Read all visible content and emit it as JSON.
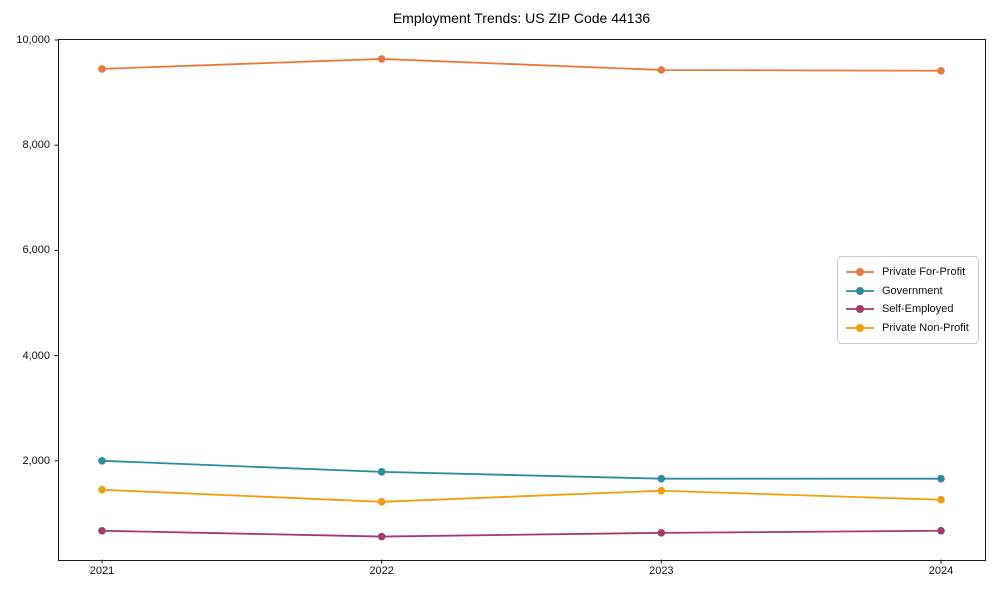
{
  "chart_data": {
    "type": "line",
    "title": "Employment Trends: US ZIP Code 44136",
    "xlabel": "",
    "ylabel": "",
    "categories": [
      "2021",
      "2022",
      "2023",
      "2024"
    ],
    "series": [
      {
        "name": "Private For-Profit",
        "color": "#e8793e",
        "values": [
          9450,
          9640,
          9430,
          9415
        ]
      },
      {
        "name": "Government",
        "color": "#2e8b9e",
        "values": [
          2000,
          1790,
          1660,
          1660
        ]
      },
      {
        "name": "Self-Employed",
        "color": "#a23a6e",
        "values": [
          670,
          560,
          630,
          670
        ]
      },
      {
        "name": "Private Non-Profit",
        "color": "#f29d0b",
        "values": [
          1450,
          1220,
          1430,
          1260
        ]
      }
    ],
    "y_ticks": [
      {
        "value": 2000,
        "label": "2,000"
      },
      {
        "value": 4000,
        "label": "4,000"
      },
      {
        "value": 6000,
        "label": "6,000"
      },
      {
        "value": 8000,
        "label": "8,000"
      },
      {
        "value": 10000,
        "label": "10,000"
      }
    ],
    "ylim": [
      114,
      10019
    ],
    "grid": false,
    "legend_position": "center right",
    "spine_color": "#1b1b1b",
    "background_color": "#ffffff"
  }
}
